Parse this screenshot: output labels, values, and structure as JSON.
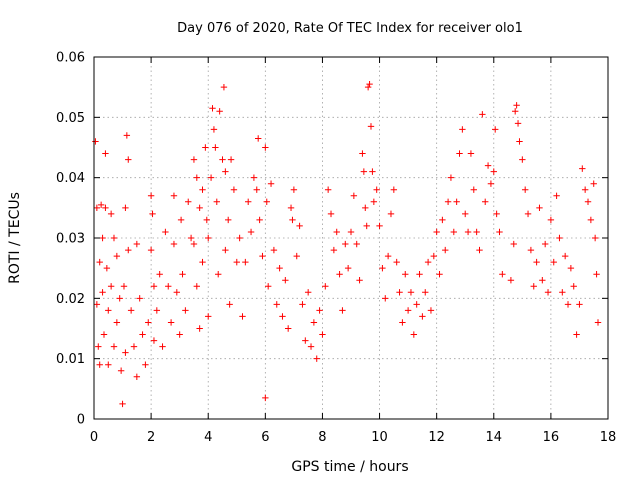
{
  "chart_data": {
    "type": "scatter",
    "title": "Day 076 of 2020, Rate Of TEC Index for receiver olo1",
    "xlabel": "GPS time / hours",
    "ylabel": "ROTI / TECUs",
    "xlim": [
      0,
      18
    ],
    "ylim": [
      0,
      0.06
    ],
    "x_ticks": [
      0,
      2,
      4,
      6,
      8,
      10,
      12,
      14,
      16,
      18
    ],
    "y_ticks": [
      0,
      0.01,
      0.02,
      0.03,
      0.04,
      0.05,
      0.06
    ],
    "x_tick_labels": [
      "0",
      "2",
      "4",
      "6",
      "8",
      "10",
      "12",
      "14",
      "16",
      "18"
    ],
    "y_tick_labels": [
      "0",
      "0.01",
      "0.02",
      "0.03",
      "0.04",
      "0.05",
      "0.06"
    ],
    "grid": true,
    "marker": "plus",
    "color": "#ff0000",
    "series": [
      {
        "values": [
          [
            0.05,
            0.046
          ],
          [
            0.1,
            0.035
          ],
          [
            0.1,
            0.019
          ],
          [
            0.15,
            0.012
          ],
          [
            0.2,
            0.026
          ],
          [
            0.2,
            0.009
          ],
          [
            0.25,
            0.0355
          ],
          [
            0.3,
            0.03
          ],
          [
            0.3,
            0.021
          ],
          [
            0.35,
            0.014
          ],
          [
            0.4,
            0.044
          ],
          [
            0.4,
            0.035
          ],
          [
            0.45,
            0.025
          ],
          [
            0.5,
            0.018
          ],
          [
            0.5,
            0.009
          ],
          [
            0.6,
            0.034
          ],
          [
            0.6,
            0.022
          ],
          [
            0.7,
            0.03
          ],
          [
            0.7,
            0.012
          ],
          [
            0.8,
            0.027
          ],
          [
            0.8,
            0.016
          ],
          [
            0.9,
            0.02
          ],
          [
            0.95,
            0.008
          ],
          [
            1.0,
            0.0025
          ],
          [
            1.05,
            0.022
          ],
          [
            1.1,
            0.035
          ],
          [
            1.1,
            0.011
          ],
          [
            1.15,
            0.047
          ],
          [
            1.2,
            0.043
          ],
          [
            1.2,
            0.028
          ],
          [
            1.3,
            0.018
          ],
          [
            1.4,
            0.012
          ],
          [
            1.5,
            0.029
          ],
          [
            1.5,
            0.007
          ],
          [
            1.6,
            0.02
          ],
          [
            1.7,
            0.014
          ],
          [
            1.8,
            0.009
          ],
          [
            1.9,
            0.016
          ],
          [
            2.0,
            0.037
          ],
          [
            2.0,
            0.028
          ],
          [
            2.05,
            0.034
          ],
          [
            2.1,
            0.022
          ],
          [
            2.1,
            0.013
          ],
          [
            2.2,
            0.018
          ],
          [
            2.3,
            0.024
          ],
          [
            2.4,
            0.012
          ],
          [
            2.5,
            0.031
          ],
          [
            2.6,
            0.022
          ],
          [
            2.7,
            0.016
          ],
          [
            2.8,
            0.037
          ],
          [
            2.8,
            0.029
          ],
          [
            2.9,
            0.021
          ],
          [
            3.0,
            0.014
          ],
          [
            3.05,
            0.033
          ],
          [
            3.1,
            0.024
          ],
          [
            3.2,
            0.018
          ],
          [
            3.3,
            0.036
          ],
          [
            3.4,
            0.03
          ],
          [
            3.5,
            0.043
          ],
          [
            3.5,
            0.029
          ],
          [
            3.6,
            0.04
          ],
          [
            3.6,
            0.022
          ],
          [
            3.7,
            0.035
          ],
          [
            3.7,
            0.015
          ],
          [
            3.8,
            0.038
          ],
          [
            3.8,
            0.026
          ],
          [
            3.9,
            0.045
          ],
          [
            3.95,
            0.033
          ],
          [
            4.0,
            0.03
          ],
          [
            4.0,
            0.017
          ],
          [
            4.1,
            0.04
          ],
          [
            4.15,
            0.0515
          ],
          [
            4.2,
            0.048
          ],
          [
            4.25,
            0.045
          ],
          [
            4.3,
            0.036
          ],
          [
            4.35,
            0.024
          ],
          [
            4.4,
            0.051
          ],
          [
            4.5,
            0.043
          ],
          [
            4.55,
            0.055
          ],
          [
            4.6,
            0.041
          ],
          [
            4.6,
            0.028
          ],
          [
            4.7,
            0.033
          ],
          [
            4.75,
            0.019
          ],
          [
            4.8,
            0.043
          ],
          [
            4.9,
            0.038
          ],
          [
            5.0,
            0.026
          ],
          [
            5.1,
            0.03
          ],
          [
            5.2,
            0.017
          ],
          [
            5.3,
            0.026
          ],
          [
            5.4,
            0.036
          ],
          [
            5.5,
            0.031
          ],
          [
            5.6,
            0.04
          ],
          [
            5.7,
            0.038
          ],
          [
            5.75,
            0.0465
          ],
          [
            5.8,
            0.033
          ],
          [
            5.9,
            0.027
          ],
          [
            6.0,
            0.045
          ],
          [
            6.0,
            0.0035
          ],
          [
            6.05,
            0.036
          ],
          [
            6.1,
            0.022
          ],
          [
            6.2,
            0.039
          ],
          [
            6.3,
            0.028
          ],
          [
            6.4,
            0.019
          ],
          [
            6.5,
            0.025
          ],
          [
            6.6,
            0.017
          ],
          [
            6.7,
            0.023
          ],
          [
            6.8,
            0.015
          ],
          [
            6.9,
            0.035
          ],
          [
            6.95,
            0.033
          ],
          [
            7.0,
            0.038
          ],
          [
            7.1,
            0.027
          ],
          [
            7.2,
            0.032
          ],
          [
            7.3,
            0.019
          ],
          [
            7.4,
            0.013
          ],
          [
            7.5,
            0.021
          ],
          [
            7.6,
            0.012
          ],
          [
            7.7,
            0.016
          ],
          [
            7.8,
            0.01
          ],
          [
            7.9,
            0.018
          ],
          [
            8.0,
            0.014
          ],
          [
            8.1,
            0.022
          ],
          [
            8.2,
            0.038
          ],
          [
            8.3,
            0.034
          ],
          [
            8.4,
            0.028
          ],
          [
            8.5,
            0.031
          ],
          [
            8.6,
            0.024
          ],
          [
            8.7,
            0.018
          ],
          [
            8.8,
            0.029
          ],
          [
            8.9,
            0.025
          ],
          [
            9.0,
            0.031
          ],
          [
            9.1,
            0.037
          ],
          [
            9.2,
            0.029
          ],
          [
            9.3,
            0.023
          ],
          [
            9.4,
            0.044
          ],
          [
            9.45,
            0.041
          ],
          [
            9.5,
            0.035
          ],
          [
            9.55,
            0.032
          ],
          [
            9.6,
            0.055
          ],
          [
            9.65,
            0.0555
          ],
          [
            9.7,
            0.0485
          ],
          [
            9.75,
            0.041
          ],
          [
            9.8,
            0.036
          ],
          [
            9.9,
            0.038
          ],
          [
            10.0,
            0.032
          ],
          [
            10.1,
            0.025
          ],
          [
            10.2,
            0.02
          ],
          [
            10.3,
            0.027
          ],
          [
            10.4,
            0.034
          ],
          [
            10.5,
            0.038
          ],
          [
            10.6,
            0.026
          ],
          [
            10.7,
            0.021
          ],
          [
            10.8,
            0.016
          ],
          [
            10.9,
            0.024
          ],
          [
            11.0,
            0.018
          ],
          [
            11.1,
            0.021
          ],
          [
            11.2,
            0.014
          ],
          [
            11.3,
            0.019
          ],
          [
            11.4,
            0.024
          ],
          [
            11.5,
            0.017
          ],
          [
            11.6,
            0.021
          ],
          [
            11.7,
            0.026
          ],
          [
            11.8,
            0.018
          ],
          [
            11.9,
            0.027
          ],
          [
            12.0,
            0.031
          ],
          [
            12.1,
            0.024
          ],
          [
            12.2,
            0.033
          ],
          [
            12.3,
            0.028
          ],
          [
            12.4,
            0.036
          ],
          [
            12.5,
            0.04
          ],
          [
            12.6,
            0.031
          ],
          [
            12.7,
            0.036
          ],
          [
            12.8,
            0.044
          ],
          [
            12.9,
            0.048
          ],
          [
            13.0,
            0.034
          ],
          [
            13.1,
            0.031
          ],
          [
            13.2,
            0.044
          ],
          [
            13.3,
            0.038
          ],
          [
            13.4,
            0.031
          ],
          [
            13.5,
            0.028
          ],
          [
            13.6,
            0.0505
          ],
          [
            13.7,
            0.036
          ],
          [
            13.8,
            0.042
          ],
          [
            13.9,
            0.039
          ],
          [
            14.0,
            0.041
          ],
          [
            14.05,
            0.048
          ],
          [
            14.1,
            0.034
          ],
          [
            14.2,
            0.031
          ],
          [
            14.3,
            0.024
          ],
          [
            14.6,
            0.023
          ],
          [
            14.7,
            0.029
          ],
          [
            14.75,
            0.051
          ],
          [
            14.8,
            0.052
          ],
          [
            14.85,
            0.049
          ],
          [
            14.9,
            0.046
          ],
          [
            15.0,
            0.043
          ],
          [
            15.1,
            0.038
          ],
          [
            15.2,
            0.034
          ],
          [
            15.3,
            0.028
          ],
          [
            15.4,
            0.022
          ],
          [
            15.5,
            0.026
          ],
          [
            15.6,
            0.035
          ],
          [
            15.7,
            0.023
          ],
          [
            15.8,
            0.029
          ],
          [
            15.9,
            0.021
          ],
          [
            16.0,
            0.033
          ],
          [
            16.1,
            0.026
          ],
          [
            16.2,
            0.037
          ],
          [
            16.3,
            0.03
          ],
          [
            16.4,
            0.021
          ],
          [
            16.5,
            0.027
          ],
          [
            16.6,
            0.019
          ],
          [
            16.7,
            0.025
          ],
          [
            16.8,
            0.022
          ],
          [
            16.9,
            0.014
          ],
          [
            17.0,
            0.019
          ],
          [
            17.1,
            0.0415
          ],
          [
            17.2,
            0.038
          ],
          [
            17.3,
            0.036
          ],
          [
            17.4,
            0.033
          ],
          [
            17.5,
            0.039
          ],
          [
            17.55,
            0.03
          ],
          [
            17.6,
            0.024
          ],
          [
            17.65,
            0.016
          ]
        ]
      }
    ]
  }
}
